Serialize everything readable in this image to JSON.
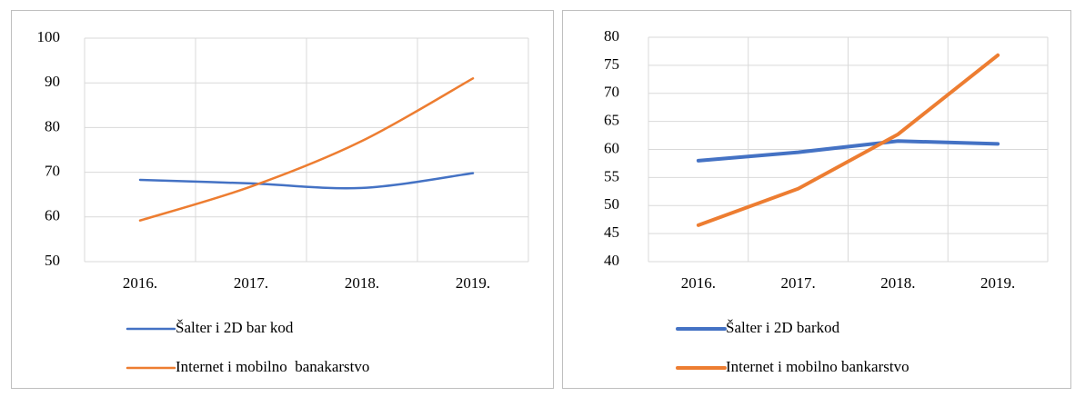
{
  "chart_data": [
    {
      "type": "line",
      "smooth": true,
      "categories": [
        "2016.",
        "2017.",
        "2018.",
        "2019."
      ],
      "series": [
        {
          "name": "Šalter i 2D bar kod",
          "color": "#4472c4",
          "values": [
            68.3,
            67.5,
            66.5,
            69.8
          ]
        },
        {
          "name": "Internet i mobilno  banakarstvo",
          "color": "#ed7d31",
          "values": [
            59.2,
            66.8,
            77,
            91
          ]
        }
      ],
      "ylim": [
        50,
        100
      ],
      "yticks": [
        50,
        60,
        70,
        80,
        90,
        100
      ],
      "grid": true
    },
    {
      "type": "line",
      "smooth": false,
      "categories": [
        "2016.",
        "2017.",
        "2018.",
        "2019."
      ],
      "series": [
        {
          "name": "Šalter i 2D barkod",
          "color": "#4472c4",
          "values": [
            58,
            59.5,
            61.5,
            61
          ]
        },
        {
          "name": "Internet i mobilno bankarstvo",
          "color": "#ed7d31",
          "values": [
            46.5,
            53,
            62.7,
            76.8
          ]
        }
      ],
      "ylim": [
        40,
        80
      ],
      "yticks": [
        40,
        45,
        50,
        55,
        60,
        65,
        70,
        75,
        80
      ],
      "grid": true
    }
  ]
}
